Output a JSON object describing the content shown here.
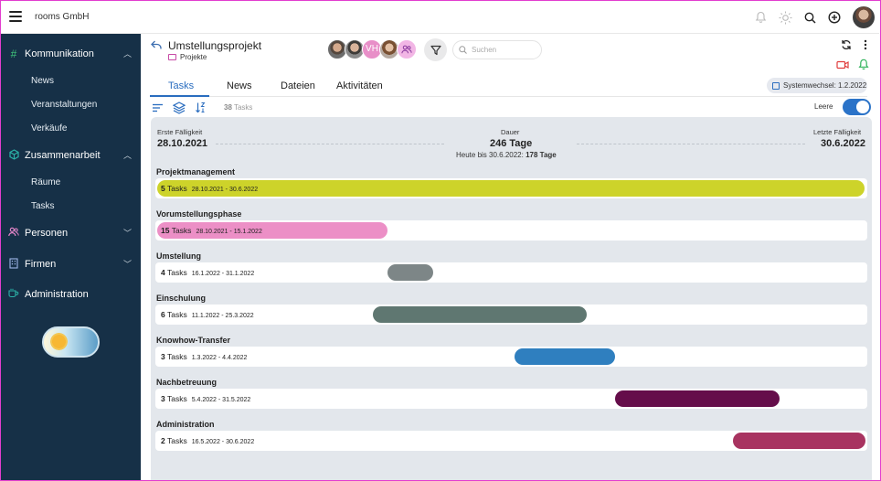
{
  "app": {
    "company": "rooms GmbH"
  },
  "sidebar": {
    "groups": [
      {
        "label": "Kommunikation",
        "icon": "hash-icon",
        "children": [
          "News",
          "Veranstaltungen",
          "Verkäufe"
        ]
      },
      {
        "label": "Zusammenarbeit",
        "icon": "cube-icon",
        "children": [
          "Räume",
          "Tasks"
        ]
      },
      {
        "label": "Personen",
        "icon": "people-icon",
        "children": []
      },
      {
        "label": "Firmen",
        "icon": "building-icon",
        "children": []
      },
      {
        "label": "Administration",
        "icon": "coffee-cup-icon",
        "children": []
      }
    ],
    "theme_toggle": "sun-icon"
  },
  "project": {
    "title": "Umstellungsprojekt",
    "category": "Projekte",
    "member_initials": "VH",
    "search_placeholder": "Suchen"
  },
  "tabs": [
    {
      "label": "Tasks",
      "active": true
    },
    {
      "label": "News",
      "active": false
    },
    {
      "label": "Dateien",
      "active": false
    },
    {
      "label": "Aktivitäten",
      "active": false
    }
  ],
  "system_change": "Systemwechsel: 1.2.2022",
  "toolbar": {
    "task_count": "38",
    "task_count_suffix": "Tasks",
    "empty_label": "Leere",
    "empty_toggle_on": true
  },
  "summary": {
    "first_due_label": "Erste Fälligkeit",
    "first_due": "28.10.2021",
    "duration_label": "Dauer",
    "duration": "246 Tage",
    "today_label": "Heute bis 30.6.2022:",
    "today_value": "178 Tage",
    "last_due_label": "Letzte Fälligkeit",
    "last_due": "30.6.2022"
  },
  "phases": [
    {
      "title": "Projektmanagement",
      "count": "5",
      "tasks_label": "Tasks",
      "dates": "28.10.2021 - 30.6.2022",
      "color": "#cdd32a",
      "text_inside": true
    },
    {
      "title": "Vorumstellungsphase",
      "count": "15",
      "tasks_label": "Tasks",
      "dates": "28.10.2021 - 15.1.2022",
      "color": "#ec8fc6",
      "text_inside": true
    },
    {
      "title": "Umstellung",
      "count": "4",
      "tasks_label": "Tasks",
      "dates": "16.1.2022 - 31.1.2022",
      "color": "#7d8687",
      "text_inside": false
    },
    {
      "title": "Einschulung",
      "count": "6",
      "tasks_label": "Tasks",
      "dates": "11.1.2022 - 25.3.2022",
      "color": "#5f7771",
      "text_inside": false
    },
    {
      "title": "Knowhow-Transfer",
      "count": "3",
      "tasks_label": "Tasks",
      "dates": "1.3.2022 - 4.4.2022",
      "color": "#2f7fbf",
      "text_inside": false
    },
    {
      "title": "Nachbetreuung",
      "count": "3",
      "tasks_label": "Tasks",
      "dates": "5.4.2022 - 31.5.2022",
      "color": "#650d4a",
      "text_inside": false
    },
    {
      "title": "Administration",
      "count": "2",
      "tasks_label": "Tasks",
      "dates": "16.5.2022 - 30.6.2022",
      "color": "#a83360",
      "text_inside": false
    }
  ]
}
